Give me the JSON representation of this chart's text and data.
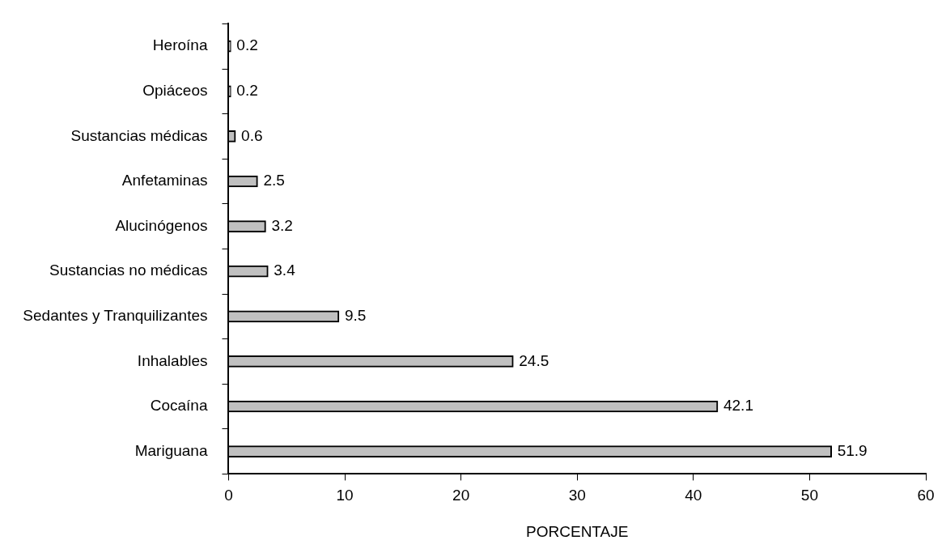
{
  "chart_data": {
    "type": "bar",
    "orientation": "horizontal",
    "categories": [
      "Heroína",
      "Opiáceos",
      "Sustancias médicas",
      "Anfetaminas",
      "Alucinógenos",
      "Sustancias no médicas",
      "Sedantes y Tranquilizantes",
      "Inhalables",
      "Cocaína",
      "Mariguana"
    ],
    "values": [
      0.2,
      0.2,
      0.6,
      2.5,
      3.2,
      3.4,
      9.5,
      24.5,
      42.1,
      51.9
    ],
    "color": "#c0c0c0",
    "xlim": [
      0,
      60
    ],
    "xticks": [
      0,
      10,
      20,
      30,
      40,
      50,
      60
    ],
    "xlabel": "PORCENTAJE",
    "grid": false,
    "legend": false,
    "data_labels": true
  }
}
